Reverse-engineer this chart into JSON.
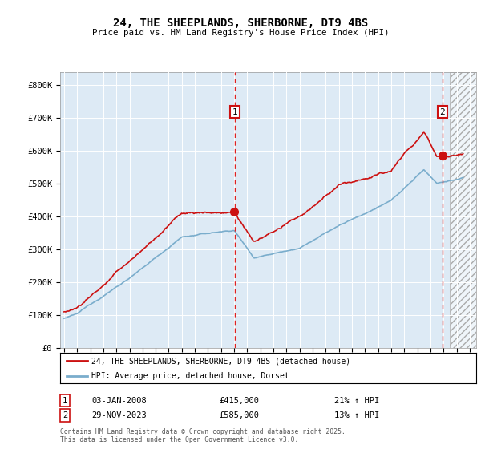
{
  "title": "24, THE SHEEPLANDS, SHERBORNE, DT9 4BS",
  "subtitle": "Price paid vs. HM Land Registry's House Price Index (HPI)",
  "ylabel_ticks": [
    "£0",
    "£100K",
    "£200K",
    "£300K",
    "£400K",
    "£500K",
    "£600K",
    "£700K",
    "£800K"
  ],
  "ytick_values": [
    0,
    100000,
    200000,
    300000,
    400000,
    500000,
    600000,
    700000,
    800000
  ],
  "ylim": [
    0,
    840000
  ],
  "sale1_date_num": 2008.04,
  "sale1_price": 415000,
  "sale1_label": "1",
  "sale2_date_num": 2023.92,
  "sale2_price": 585000,
  "sale2_label": "2",
  "hpi_color": "#7aadcc",
  "price_color": "#cc1111",
  "background_color": "#ddeaf5",
  "legend_entries": [
    "24, THE SHEEPLANDS, SHERBORNE, DT9 4BS (detached house)",
    "HPI: Average price, detached house, Dorset"
  ],
  "footnote": "Contains HM Land Registry data © Crown copyright and database right 2025.\nThis data is licensed under the Open Government Licence v3.0."
}
